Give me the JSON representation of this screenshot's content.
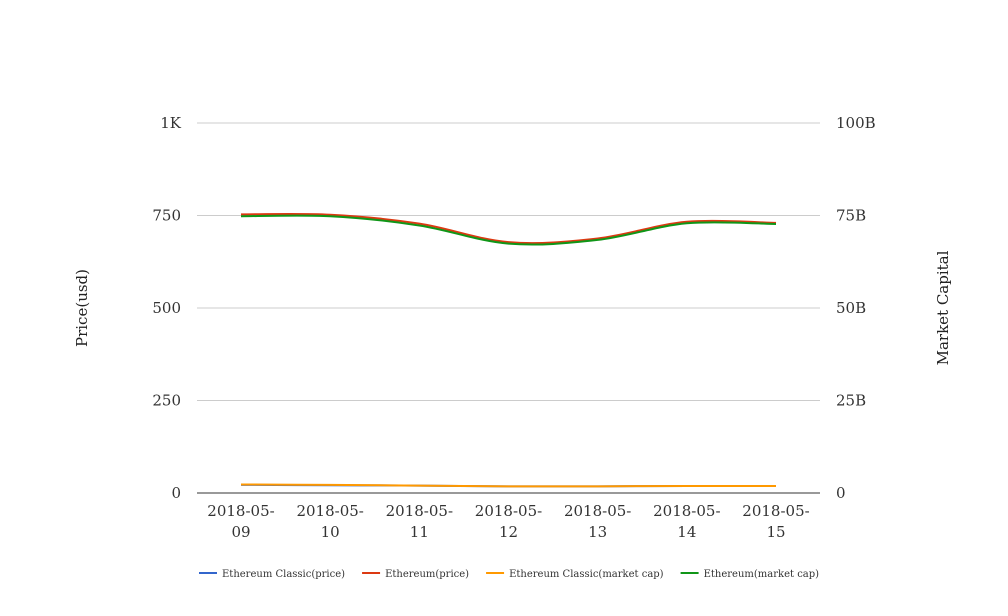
{
  "chart_data": {
    "type": "line",
    "categories": [
      "2018-05-09",
      "2018-05-10",
      "2018-05-11",
      "2018-05-12",
      "2018-05-13",
      "2018-05-14",
      "2018-05-15"
    ],
    "x_tick_labels": [
      [
        "2018-05-",
        "09"
      ],
      [
        "2018-05-",
        "10"
      ],
      [
        "2018-05-",
        "11"
      ],
      [
        "2018-05-",
        "12"
      ],
      [
        "2018-05-",
        "13"
      ],
      [
        "2018-05-",
        "14"
      ],
      [
        "2018-05-",
        "15"
      ]
    ],
    "ylabel_left": "Price(usd)",
    "ylabel_right": "Market Capital",
    "ylim_left": [
      0,
      1000
    ],
    "ylim_right": [
      0,
      100000000000
    ],
    "y_ticks_left": [
      "0",
      "250",
      "500",
      "750",
      "1K"
    ],
    "y_ticks_right": [
      "0",
      "25B",
      "50B",
      "75B",
      "100B"
    ],
    "grid": true,
    "legend_position": "bottom",
    "series": [
      {
        "name": "Ethereum Classic(price)",
        "axis": "left",
        "color": "#3366cc",
        "values": [
          22,
          21,
          20,
          18,
          18,
          19,
          19
        ]
      },
      {
        "name": "Ethereum(price)",
        "axis": "left",
        "color": "#dc3912",
        "values": [
          753,
          752,
          728,
          678,
          688,
          733,
          730
        ]
      },
      {
        "name": "Ethereum Classic(market cap)",
        "axis": "right",
        "color": "#ff9900",
        "values": [
          2300000000,
          2200000000,
          2000000000,
          1800000000,
          1800000000,
          1900000000,
          1900000000
        ]
      },
      {
        "name": "Ethereum(market cap)",
        "axis": "right",
        "color": "#109618",
        "values": [
          74800000000,
          74800000000,
          72300000000,
          67400000000,
          68400000000,
          72900000000,
          72700000000
        ]
      }
    ]
  }
}
